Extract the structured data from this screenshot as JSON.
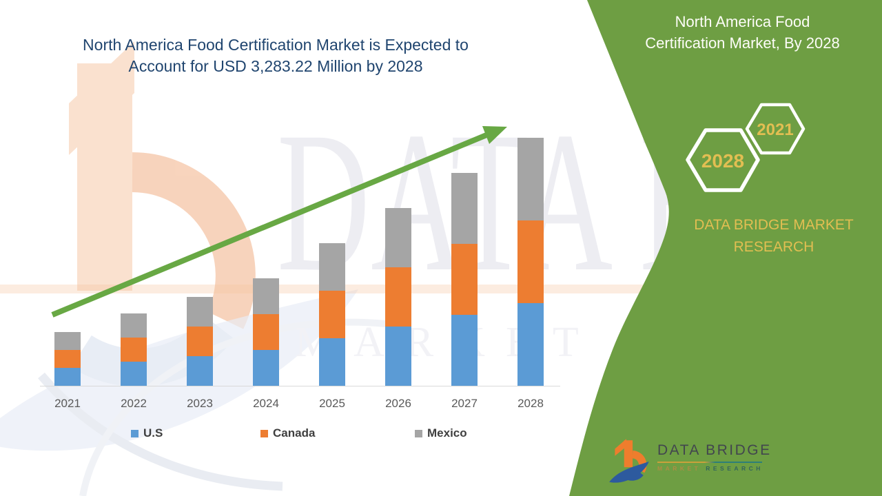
{
  "page": {
    "title_line1": "North America Food Certification Market is Expected to",
    "title_line2": "Account for USD 3,283.22 Million by 2028"
  },
  "side_panel": {
    "title_line1": "North America Food",
    "title_line2": "Certification Market, By 2028",
    "hex_large_year": "2028",
    "hex_small_year": "2021",
    "brand_line1": "DATA BRIDGE MARKET",
    "brand_line2": "RESEARCH"
  },
  "watermark": {
    "text_line1": "DATA BRI",
    "text_line2": "MARKET RESE"
  },
  "logo": {
    "name": "DATA BRIDGE",
    "tagline_market": "MARKET",
    "tagline_research": "RESEARCH"
  },
  "colors": {
    "panel_green": "#6E9E43",
    "arrow_green": "#68A844",
    "gold": "#E2BE52",
    "title_navy": "#20456F",
    "axis_text": "#595959",
    "axis_line": "#D9D9D9",
    "legend_text": "#3F3F3F",
    "logo_orange": "#EE7D2D",
    "logo_blue": "#2D5A9E",
    "logo_text": "#42464E",
    "underline_gold": "#C9A13B",
    "underline_teal": "#2E7F78",
    "wm_peach": "#F6C5A0",
    "wm_peach_deep": "#F1A97C",
    "wm_blue": "#D3DCEC"
  },
  "chart_data": {
    "type": "bar",
    "stacked": true,
    "title": "North America Food Certification Market",
    "unit": "USD Million",
    "categories": [
      "2021",
      "2022",
      "2023",
      "2024",
      "2025",
      "2026",
      "2027",
      "2028"
    ],
    "series": [
      {
        "name": "U.S",
        "color": "#5B9BD5",
        "values": [
          240,
          315,
          391,
          470,
          624,
          782,
          937,
          1094
        ]
      },
      {
        "name": "Canada",
        "color": "#ED7D31",
        "values": [
          240,
          315,
          391,
          470,
          625,
          782,
          937,
          1094
        ]
      },
      {
        "name": "Mexico",
        "color": "#A5A5A5",
        "values": [
          239,
          316,
          391,
          470,
          624,
          782,
          937,
          1095
        ]
      }
    ],
    "totals": [
      719,
      946,
      1173,
      1410,
      1873,
      2346,
      2811,
      3283
    ],
    "ylim": [
      0,
      3400
    ],
    "grid": false,
    "y_axis_visible": false,
    "legend_position": "bottom",
    "annotation": "2028 total = USD 3,283.22 Million"
  }
}
